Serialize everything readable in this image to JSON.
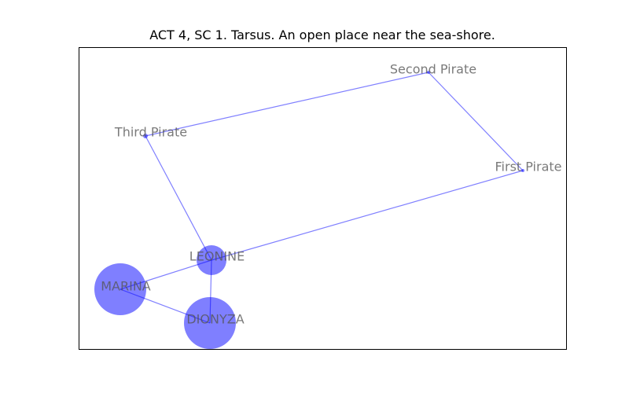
{
  "title": "ACT 4, SC 1. Tarsus. An open place near the sea-shore.",
  "colors": {
    "node_fill": "#0000ff",
    "edge": "#0000ff",
    "label": "#555555",
    "frame": "#000000"
  },
  "graph": {
    "nodes": [
      {
        "id": "second-pirate",
        "label": "Second Pirate",
        "size": "tiny"
      },
      {
        "id": "third-pirate",
        "label": "Third Pirate",
        "size": "small"
      },
      {
        "id": "first-pirate",
        "label": "First Pirate",
        "size": "tiny"
      },
      {
        "id": "leonine",
        "label": "LEONINE",
        "size": "medium"
      },
      {
        "id": "marina",
        "label": "MARINA",
        "size": "large"
      },
      {
        "id": "dionyza",
        "label": "DIONYZA",
        "size": "large"
      }
    ],
    "edges": [
      {
        "source": "second-pirate",
        "target": "third-pirate"
      },
      {
        "source": "second-pirate",
        "target": "first-pirate"
      },
      {
        "source": "third-pirate",
        "target": "leonine"
      },
      {
        "source": "first-pirate",
        "target": "leonine"
      },
      {
        "source": "leonine",
        "target": "marina"
      },
      {
        "source": "leonine",
        "target": "dionyza"
      },
      {
        "source": "marina",
        "target": "dionyza"
      }
    ]
  }
}
